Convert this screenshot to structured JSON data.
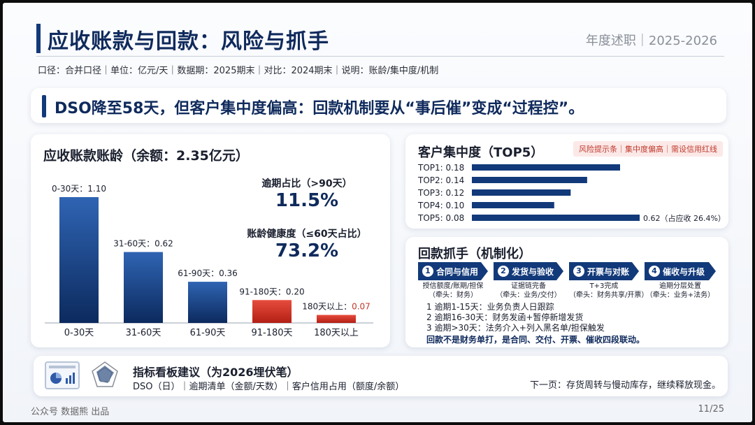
{
  "header": {
    "title": "应收账款与回款：风险与抓手",
    "tag": "年度述职｜2025-2026",
    "caliber": "口径：合并口径｜单位：亿元/天｜数据期：2025期末｜对比：2024期末｜说明：账龄/集中度/机制"
  },
  "headline": "DSO降至58天，但客户集中度偏高：回款机制要从“事后催”变成“过程控”。",
  "colors": {
    "navy": "#123a7a",
    "red": "#c0392b"
  },
  "aging": {
    "title": "应收账款账龄（余额：2.35亿元）",
    "kpis": [
      {
        "label": "逾期占比（>90天）",
        "value": "11.5%"
      },
      {
        "label": "账龄健康度（≤60天占比）",
        "value": "73.2%"
      }
    ]
  },
  "concentration": {
    "title": "客户集中度（TOP5）",
    "risk_note": "风险提示条｜集中度偏高｜需设信用红线",
    "total_note": "0.62（占应收 26.4%）"
  },
  "mechanism": {
    "title": "回款抓手（机制化）",
    "steps": [
      {
        "num": "1",
        "label": "合同与信用",
        "sub1": "授信额度/账期/担保",
        "sub2": "（牵头：财务）"
      },
      {
        "num": "2",
        "label": "发货与验收",
        "sub1": "证据链完备",
        "sub2": "（牵头：业务/交付）"
      },
      {
        "num": "3",
        "label": "开票与对账",
        "sub1": "T+3完成",
        "sub2": "（牵头：财务共享/开票）"
      },
      {
        "num": "4",
        "label": "催收与升级",
        "sub1": "逾期分层处置",
        "sub2": "（牵头：业务+法务）"
      }
    ],
    "escalation": [
      "1 逾期1-15天：业务负责人日跟踪",
      "2 逾期16-30天：财务发函+暂停新增发货",
      "3 逾期>30天：法务介入+列入黑名单/担保触发"
    ],
    "bottom": "回款不是财务单打，是合同、交付、开票、催收四段联动。"
  },
  "dashboard": {
    "title": "指标看板建议（为2026埋伏笔）",
    "items": "DSO（日）｜逾期清单（金额/天数）｜客户信用占用（额度/余额）",
    "next": "下一页：存货周转与慢动库存，继续释放现金。"
  },
  "footer": {
    "left": "公众号 数据熊 出品",
    "right": "11/25"
  },
  "chart_data": [
    {
      "type": "bar",
      "title": "应收账款账龄（余额：2.35亿元）",
      "categories": [
        "0-30天",
        "31-60天",
        "61-90天",
        "91-180天",
        "180天以上"
      ],
      "values": [
        1.1,
        0.62,
        0.36,
        0.2,
        0.07
      ],
      "data_labels": [
        "0-30天：1.10",
        "31-60天：0.62",
        "61-90天：0.36",
        "91-180天：0.20",
        "180天以上："
      ],
      "data_label_suffix": [
        "",
        "",
        "",
        "",
        "0.07"
      ],
      "highlight": [
        false,
        false,
        false,
        true,
        true
      ]
    },
    {
      "type": "bar",
      "orientation": "horizontal",
      "title": "客户集中度（TOP5）",
      "categories": [
        "TOP1",
        "TOP2",
        "TOP3",
        "TOP4",
        "TOP5"
      ],
      "values": [
        0.18,
        0.14,
        0.12,
        0.1,
        0.08
      ],
      "tick_labels": [
        "TOP1: 0.18",
        "TOP2: 0.14",
        "TOP3: 0.12",
        "TOP4: 0.10",
        "TOP5: 0.08"
      ],
      "total": 0.62
    }
  ]
}
